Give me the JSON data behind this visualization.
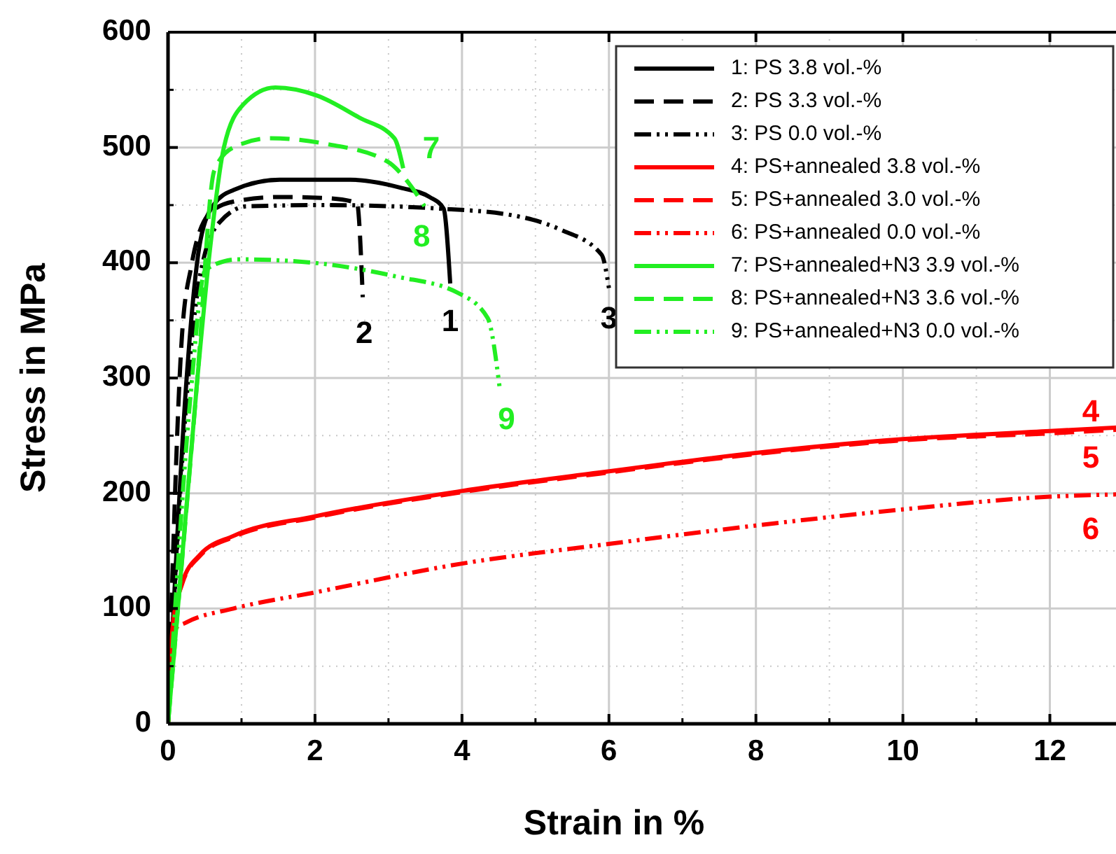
{
  "chart_data": {
    "type": "line",
    "xlabel": "Strain in %",
    "ylabel": "Stress in MPa",
    "xlim": [
      0,
      12.9
    ],
    "ylim": [
      0,
      600
    ],
    "xticks": [
      0,
      2,
      4,
      6,
      8,
      10,
      12
    ],
    "yticks": [
      0,
      100,
      200,
      300,
      400,
      500,
      600
    ],
    "grid": true,
    "legend": "top right",
    "series": [
      {
        "name": "1: PS 3.8 vol.-%",
        "color": "#000000",
        "line_style": "solid",
        "x": [
          0,
          0.25,
          0.44,
          0.63,
          0.89,
          1.52,
          2.48,
          3.17,
          3.56,
          3.75,
          3.84
        ],
        "values": [
          0,
          297,
          419,
          451,
          463,
          472,
          472,
          465,
          457,
          447,
          382
        ]
      },
      {
        "name": "2: PS 3.3 vol.-%",
        "color": "#000000",
        "line_style": "dashed",
        "x": [
          0,
          0.19,
          0.32,
          0.57,
          0.89,
          1.52,
          2.16,
          2.57,
          2.65
        ],
        "values": [
          0,
          337,
          398,
          443,
          453,
          457,
          456,
          452,
          370
        ]
      },
      {
        "name": "3: PS 0.0 vol.-%",
        "color": "#000000",
        "line_style": "dashdot",
        "x": [
          0,
          0.25,
          0.44,
          0.7,
          1.08,
          2.16,
          3.68,
          4.7,
          5.33,
          5.9,
          6.0
        ],
        "values": [
          0,
          280,
          390,
          435,
          449,
          450,
          447,
          441,
          429,
          407,
          378
        ]
      },
      {
        "name": "4: PS+annealed 3.8 vol.-%",
        "color": "#ff0000",
        "line_style": "solid",
        "x": [
          0,
          0.06,
          0.19,
          0.44,
          0.89,
          2,
          4,
          5.87,
          8,
          10,
          12,
          12.9
        ],
        "values": [
          0,
          82,
          122,
          147,
          163,
          180,
          202,
          218,
          235,
          247,
          254,
          257
        ]
      },
      {
        "name": "5: PS+annealed 3.0 vol.-%",
        "color": "#ff0000",
        "line_style": "dashed",
        "x": [
          0,
          0.06,
          0.19,
          0.44,
          0.89,
          2,
          4,
          5.87,
          8,
          10,
          12,
          12.9
        ],
        "values": [
          0,
          81,
          121,
          146,
          162,
          179,
          201,
          217,
          234,
          246,
          252,
          255
        ]
      },
      {
        "name": "6: PS+annealed 0.0 vol.-%",
        "color": "#ff0000",
        "line_style": "dashdot",
        "x": [
          0,
          0.09,
          0.25,
          0.89,
          2,
          4,
          5.87,
          8,
          10,
          12,
          12.9
        ],
        "values": [
          0,
          82,
          88,
          100,
          114,
          139,
          155,
          172,
          186,
          197,
          199
        ]
      },
      {
        "name": "7: PS+annealed+N3 3.9 vol.-%",
        "color": "#22ee22",
        "line_style": "solid",
        "x": [
          0,
          0.4,
          0.57,
          0.76,
          1.02,
          1.46,
          2.03,
          2.6,
          3.08,
          3.2
        ],
        "values": [
          0,
          300,
          411,
          500,
          537,
          552,
          545,
          526,
          508,
          482
        ]
      },
      {
        "name": "8: PS+annealed+N3 3.6 vol.-%",
        "color": "#22ee22",
        "line_style": "dashed",
        "x": [
          0,
          0.4,
          0.63,
          0.89,
          1.4,
          2.16,
          2.98,
          3.3,
          3.49
        ],
        "values": [
          0,
          300,
          480,
          500,
          508,
          503,
          488,
          467,
          449
        ]
      },
      {
        "name": "9: PS+annealed+N3 0.0 vol.-%",
        "color": "#22ee22",
        "line_style": "dashdot",
        "x": [
          0,
          0.3,
          0.51,
          0.95,
          1.97,
          3.11,
          3.94,
          4.35,
          4.51
        ],
        "values": [
          0,
          280,
          394,
          403,
          400,
          388,
          374,
          352,
          293
        ]
      }
    ],
    "annotations": [
      "1",
      "2",
      "3",
      "4",
      "5",
      "6",
      "7",
      "8",
      "9"
    ]
  }
}
